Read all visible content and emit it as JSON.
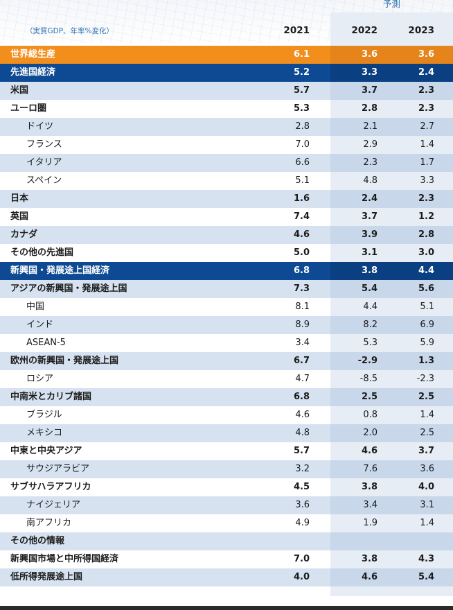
{
  "forecast_label": "予測",
  "unit_note": "（実質GDP、年率%変化）",
  "years": [
    "2021",
    "2022",
    "2023"
  ],
  "rows": [
    {
      "label": "世界総生産",
      "v": [
        "6.1",
        "3.6",
        "3.6"
      ],
      "style": "orange"
    },
    {
      "label": "先進国経済",
      "v": [
        "5.2",
        "3.3",
        "2.4"
      ],
      "style": "navy"
    },
    {
      "label": "米国",
      "v": [
        "5.7",
        "3.7",
        "2.3"
      ],
      "style": "shade",
      "bold": true
    },
    {
      "label": "ユーロ圏",
      "v": [
        "5.3",
        "2.8",
        "2.3"
      ],
      "style": "plain",
      "bold": true
    },
    {
      "label": "ドイツ",
      "v": [
        "2.8",
        "2.1",
        "2.7"
      ],
      "style": "shade",
      "indent": true
    },
    {
      "label": "フランス",
      "v": [
        "7.0",
        "2.9",
        "1.4"
      ],
      "style": "plain",
      "indent": true
    },
    {
      "label": "イタリア",
      "v": [
        "6.6",
        "2.3",
        "1.7"
      ],
      "style": "shade",
      "indent": true
    },
    {
      "label": "スペイン",
      "v": [
        "5.1",
        "4.8",
        "3.3"
      ],
      "style": "plain",
      "indent": true
    },
    {
      "label": "日本",
      "v": [
        "1.6",
        "2.4",
        "2.3"
      ],
      "style": "shade",
      "bold": true
    },
    {
      "label": "英国",
      "v": [
        "7.4",
        "3.7",
        "1.2"
      ],
      "style": "plain",
      "bold": true
    },
    {
      "label": "カナダ",
      "v": [
        "4.6",
        "3.9",
        "2.8"
      ],
      "style": "shade",
      "bold": true
    },
    {
      "label": "その他の先進国",
      "v": [
        "5.0",
        "3.1",
        "3.0"
      ],
      "style": "plain",
      "bold": true
    },
    {
      "label": "新興国・発展途上国経済",
      "v": [
        "6.8",
        "3.8",
        "4.4"
      ],
      "style": "navy"
    },
    {
      "label": "アジアの新興国・発展途上国",
      "v": [
        "7.3",
        "5.4",
        "5.6"
      ],
      "style": "shade",
      "bold": true
    },
    {
      "label": "中国",
      "v": [
        "8.1",
        "4.4",
        "5.1"
      ],
      "style": "plain",
      "indent": true
    },
    {
      "label": "インド",
      "v": [
        "8.9",
        "8.2",
        "6.9"
      ],
      "style": "shade",
      "indent": true
    },
    {
      "label": "ASEAN-5",
      "v": [
        "3.4",
        "5.3",
        "5.9"
      ],
      "style": "plain",
      "indent": true
    },
    {
      "label": "欧州の新興国・発展途上国",
      "v": [
        "6.7",
        "-2.9",
        "1.3"
      ],
      "style": "shade",
      "bold": true
    },
    {
      "label": "ロシア",
      "v": [
        "4.7",
        "-8.5",
        "-2.3"
      ],
      "style": "plain",
      "indent": true
    },
    {
      "label": "中南米とカリブ諸国",
      "v": [
        "6.8",
        "2.5",
        "2.5"
      ],
      "style": "shade",
      "bold": true
    },
    {
      "label": "ブラジル",
      "v": [
        "4.6",
        "0.8",
        "1.4"
      ],
      "style": "plain",
      "indent": true
    },
    {
      "label": "メキシコ",
      "v": [
        "4.8",
        "2.0",
        "2.5"
      ],
      "style": "shade",
      "indent": true
    },
    {
      "label": "中東と中央アジア",
      "v": [
        "5.7",
        "4.6",
        "3.7"
      ],
      "style": "plain",
      "bold": true
    },
    {
      "label": "サウジアラビア",
      "v": [
        "3.2",
        "7.6",
        "3.6"
      ],
      "style": "shade",
      "indent": true
    },
    {
      "label": "サブサハラアフリカ",
      "v": [
        "4.5",
        "3.8",
        "4.0"
      ],
      "style": "plain",
      "bold": true
    },
    {
      "label": "ナイジェリア",
      "v": [
        "3.6",
        "3.4",
        "3.1"
      ],
      "style": "shade",
      "indent": true
    },
    {
      "label": "南アフリカ",
      "v": [
        "4.9",
        "1.9",
        "1.4"
      ],
      "style": "plain",
      "indent": true
    },
    {
      "label": "その他の情報",
      "v": [
        "",
        "",
        ""
      ],
      "style": "shade",
      "bold": true
    },
    {
      "label": "新興国市場と中所得国経済",
      "v": [
        "7.0",
        "3.8",
        "4.3"
      ],
      "style": "plain",
      "bold": true
    },
    {
      "label": "低所得発展途上国",
      "v": [
        "4.0",
        "4.6",
        "5.4"
      ],
      "style": "shade",
      "bold": true
    }
  ]
}
